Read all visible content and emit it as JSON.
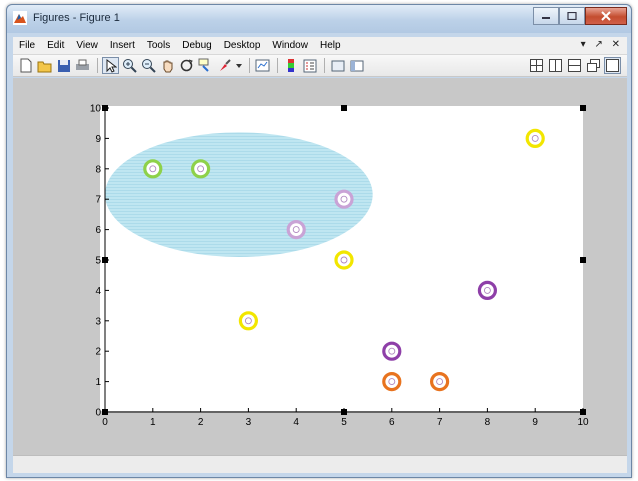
{
  "window": {
    "title": "Figures - Figure 1",
    "buttons": [
      "minimize",
      "maximize",
      "close"
    ]
  },
  "menu": {
    "items": [
      "File",
      "Edit",
      "View",
      "Insert",
      "Tools",
      "Debug",
      "Desktop",
      "Window",
      "Help"
    ],
    "right_controls": "▾ ↗ ✕"
  },
  "toolbar": {
    "left_icons": [
      "new-icon",
      "open-icon",
      "save-icon",
      "print-icon",
      "pointer-icon",
      "zoom-in-icon",
      "zoom-out-icon",
      "pan-icon",
      "rotate-icon",
      "datacursor-icon",
      "brush-icon",
      "link-icon",
      "colorbar-icon",
      "legend-icon",
      "hide-plot-tools-icon",
      "show-plot-tools-icon"
    ],
    "right_icons": [
      "tile-icon",
      "left-right-icon",
      "top-bottom-icon",
      "float-icon",
      "maximize-icon"
    ]
  },
  "colors": {
    "yellow": "#f2e600",
    "green": "#8ed14a",
    "lilac": "#c9a3d6",
    "purple": "#8e3fa8",
    "orange": "#e8731f",
    "ellipse": "#b7e3ef"
  },
  "chart_data": {
    "type": "scatter",
    "xlim": [
      0,
      10
    ],
    "ylim": [
      0,
      10
    ],
    "xticks": [
      0,
      1,
      2,
      3,
      4,
      5,
      6,
      7,
      8,
      9,
      10
    ],
    "yticks": [
      0,
      1,
      2,
      3,
      4,
      5,
      6,
      7,
      8,
      9,
      10
    ],
    "grid": false,
    "points": [
      {
        "x": 1,
        "y": 8,
        "color": "green"
      },
      {
        "x": 2,
        "y": 8,
        "color": "green"
      },
      {
        "x": 4,
        "y": 6,
        "color": "lilac"
      },
      {
        "x": 5,
        "y": 7,
        "color": "lilac"
      },
      {
        "x": 5,
        "y": 5,
        "color": "yellow"
      },
      {
        "x": 3,
        "y": 3,
        "color": "yellow"
      },
      {
        "x": 9,
        "y": 9,
        "color": "yellow"
      },
      {
        "x": 8,
        "y": 4,
        "color": "purple"
      },
      {
        "x": 6,
        "y": 2,
        "color": "purple"
      },
      {
        "x": 6,
        "y": 1,
        "color": "orange"
      },
      {
        "x": 7,
        "y": 1,
        "color": "orange"
      }
    ],
    "ellipse": {
      "cx": 2.8,
      "cy": 7.15,
      "rx": 2.8,
      "ry": 2.05
    },
    "selection_handles": [
      [
        0,
        10
      ],
      [
        5,
        10
      ],
      [
        10,
        10
      ],
      [
        0,
        5
      ],
      [
        10,
        5
      ],
      [
        0,
        0
      ],
      [
        5,
        0
      ],
      [
        10,
        0
      ]
    ]
  }
}
